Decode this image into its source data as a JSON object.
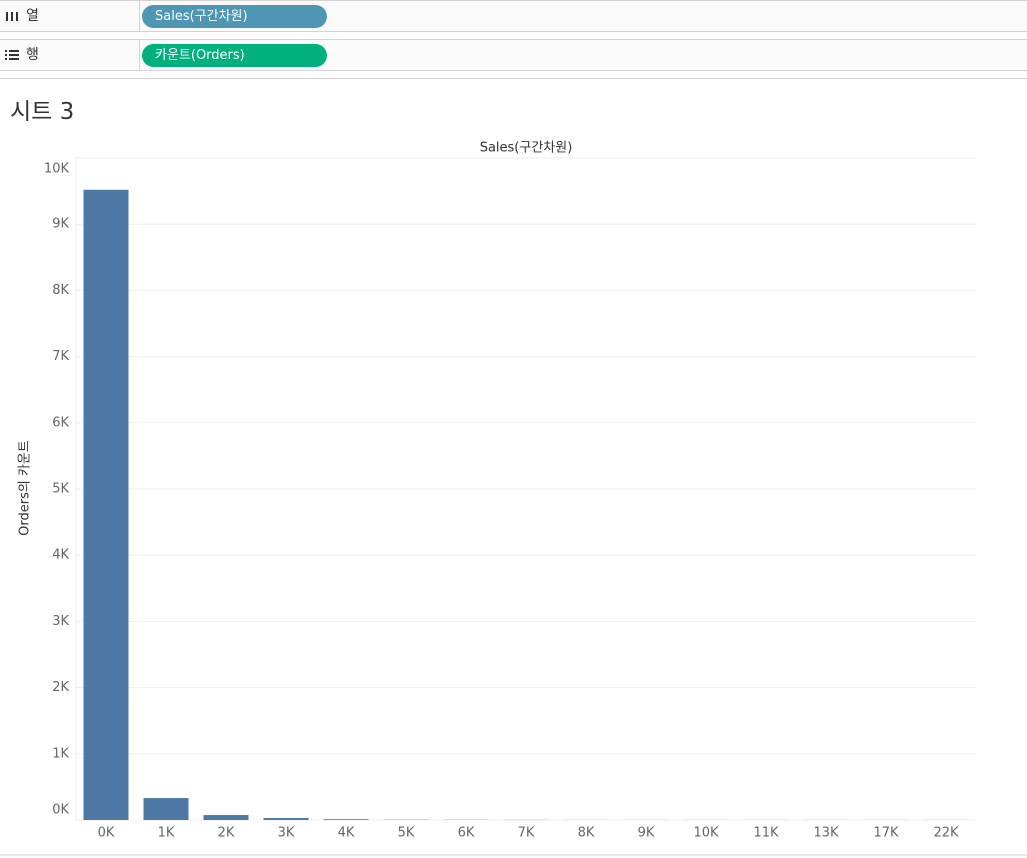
{
  "shelves": {
    "columns": {
      "label": "열",
      "pill": "Sales(구간차원)"
    },
    "rows": {
      "label": "행",
      "pill": "카운트(Orders)"
    }
  },
  "sheet_title": "시트 3",
  "chart_data": {
    "type": "bar",
    "title": "Sales(구간차원)",
    "y_label": "Orders의 카운트",
    "categories": [
      "0K",
      "1K",
      "2K",
      "3K",
      "4K",
      "5K",
      "6K",
      "7K",
      "8K",
      "9K",
      "10K",
      "11K",
      "13K",
      "17K",
      "22K"
    ],
    "values": [
      9520,
      332,
      75,
      30,
      12,
      4,
      3,
      2,
      1,
      1,
      1,
      1,
      1,
      1,
      1
    ],
    "color": "#4e79a7",
    "ylim": [
      0,
      10000
    ],
    "yticks": [
      {
        "value": 0,
        "label": "0K"
      },
      {
        "value": 1000,
        "label": "1K"
      },
      {
        "value": 2000,
        "label": "2K"
      },
      {
        "value": 3000,
        "label": "3K"
      },
      {
        "value": 4000,
        "label": "4K"
      },
      {
        "value": 5000,
        "label": "5K"
      },
      {
        "value": 6000,
        "label": "6K"
      },
      {
        "value": 7000,
        "label": "7K"
      },
      {
        "value": 8000,
        "label": "8K"
      },
      {
        "value": 9000,
        "label": "9K"
      },
      {
        "value": 10000,
        "label": "10K"
      }
    ],
    "grid": true
  }
}
